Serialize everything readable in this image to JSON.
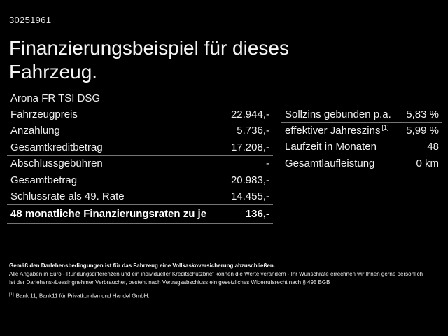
{
  "meta": {
    "document_id": "30251961"
  },
  "header": {
    "title_line1": "Finanzierungsbeispiel für dieses",
    "title_line2": "Fahrzeug.",
    "vehicle_model": "Arona FR TSI DSG"
  },
  "finance_table": {
    "rows": [
      {
        "label": "Fahrzeugpreis",
        "value": "22.944,-"
      },
      {
        "label": "Anzahlung",
        "value": "5.736,-"
      },
      {
        "label": "Gesamtkreditbetrag",
        "value": "17.208,-"
      },
      {
        "label": "Abschlussgebühren",
        "value": "-"
      },
      {
        "label": "Gesamtbetrag",
        "value": "20.983,-"
      },
      {
        "label": "Schlussrate als 49. Rate",
        "value": "14.455,-"
      },
      {
        "label": "48 monatliche Finanzierungsraten zu je",
        "value": "136,-"
      }
    ]
  },
  "conditions_table": {
    "rows": [
      {
        "label": "Sollzins gebunden p.a.",
        "value": "5,83 %"
      },
      {
        "label": "effektiver Jahreszins",
        "footnote_ref": "[1]",
        "value": "5,99 %"
      },
      {
        "label": "Laufzeit in Monaten",
        "value": "48"
      },
      {
        "label": "Gesamtlaufleistung",
        "value": "0 km"
      }
    ]
  },
  "footer": {
    "insurance_note": "Gemäß den Darlehensbedingungen ist für das Fahrzeug eine Vollkaskoversicherung abzuschließen.",
    "note_line1": "Alle Angaben in Euro - Rundungsdifferenzen und ein individueller Kreditschutzbrief können die Werte verändern - Ihr Wunschrate errechnen wir Ihnen gerne persönlich",
    "note_line2": "Ist der Darlehens-/Leasingnehmer Verbraucher, besteht nach Vertragsabschluss ein gesetzliches Widerrufsrecht nach § 495 BGB",
    "footnote_marker": "[1]",
    "footnote_text": "Bank 11, Bank11 für Privatkunden und Handel GmbH."
  },
  "colors": {
    "background": "#000000",
    "text": "#f0f0f0",
    "divider": "#757575"
  }
}
